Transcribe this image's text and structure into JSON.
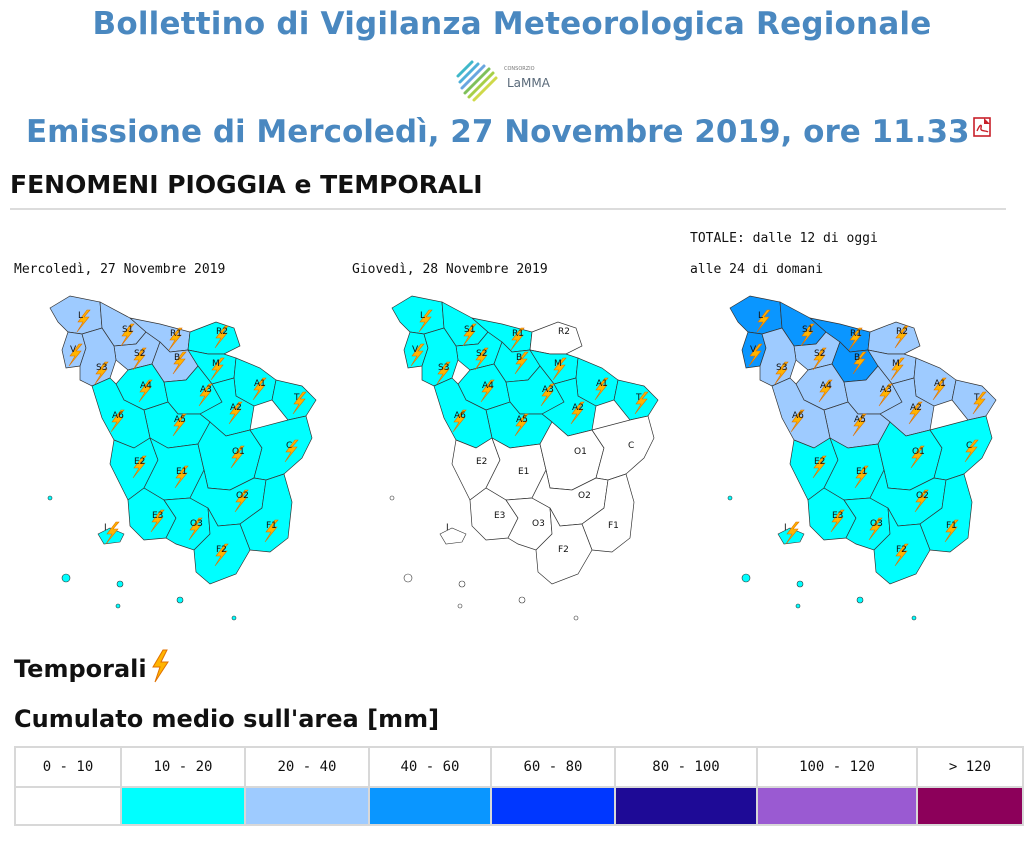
{
  "header": {
    "title": "Bollettino di Vigilanza Meteorologica Regionale",
    "logo_small": "CONSORZIO",
    "logo_name": "LaMMA",
    "issue": "Emissione di Mercoledì, 27 Novembre 2019, ore 11.33",
    "pdf_icon": "pdf-icon"
  },
  "section": {
    "title": "FENOMENI PIOGGIA e TEMPORALI"
  },
  "maps": [
    {
      "label_line1": "",
      "label_line2": "Mercoledì, 27 Novembre 2019"
    },
    {
      "label_line1": "",
      "label_line2": "Giovedì, 28 Novembre 2019"
    },
    {
      "label_line1": "TOTALE: dalle 12 di oggi",
      "label_line2": "alle 24 di domani"
    }
  ],
  "zone_codes": [
    "L",
    "V",
    "S1",
    "S2",
    "S3",
    "R1",
    "R2",
    "B",
    "M",
    "A4",
    "A3",
    "A1",
    "T",
    "A2",
    "A5",
    "A6",
    "E2",
    "E1",
    "O1",
    "C",
    "E3",
    "O3",
    "O2",
    "F1",
    "F2",
    "I"
  ],
  "legend": {
    "temporali_label": "Temporali",
    "temporali_icon": "lightning-icon",
    "cumulato_label": "Cumulato medio sull'area [mm]",
    "classes": [
      {
        "label": "0 - 10",
        "color": "#ffffff"
      },
      {
        "label": "10 - 20",
        "color": "#00ffff"
      },
      {
        "label": "20 - 40",
        "color": "#9ecbff"
      },
      {
        "label": "40 - 60",
        "color": "#0a96ff"
      },
      {
        "label": "60 - 80",
        "color": "#0037ff"
      },
      {
        "label": "80 - 100",
        "color": "#1e0a96"
      },
      {
        "label": "100 - 120",
        "color": "#9a5ad2"
      },
      {
        "label": "> 120",
        "color": "#8c005a"
      }
    ]
  }
}
